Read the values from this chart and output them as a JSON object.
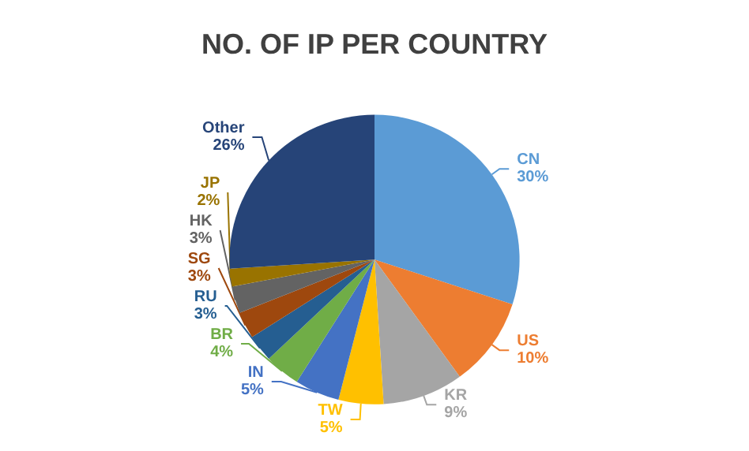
{
  "chart_data": {
    "type": "pie",
    "title": "NO. OF IP PER COUNTRY",
    "categories": [
      "CN",
      "US",
      "KR",
      "TW",
      "IN",
      "BR",
      "RU",
      "SG",
      "HK",
      "JP",
      "Other"
    ],
    "values": [
      30,
      10,
      9,
      5,
      5,
      4,
      3,
      3,
      3,
      2,
      26
    ],
    "value_labels": [
      "30%",
      "10%",
      "9%",
      "5%",
      "5%",
      "4%",
      "3%",
      "3%",
      "3%",
      "2%",
      "26%"
    ],
    "colors": [
      "#5b9bd5",
      "#ed7d31",
      "#a5a5a5",
      "#ffc000",
      "#4472c4",
      "#70ad47",
      "#255e91",
      "#9e480e",
      "#636363",
      "#997300",
      "#264478"
    ],
    "legend": false
  }
}
